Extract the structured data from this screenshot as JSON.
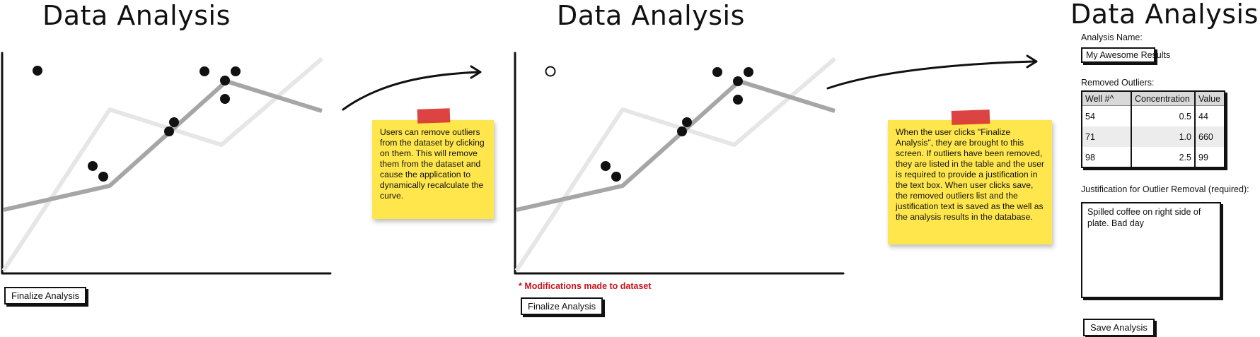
{
  "screens": [
    {
      "title": "Data Analysis",
      "finalize_label": "Finalize Analysis",
      "note": "Users can remove outliers from the dataset by clicking on them. This will remove them from the dataset and cause the application to dynamically recalculate the curve."
    },
    {
      "title": "Data Analysis",
      "modifications_label": "* Modifications made to dataset",
      "finalize_label": "Finalize Analysis",
      "note": "When the user clicks \"Finalize Analysis\", they are brought to this screen. If outliers have been removed, they are listed in the table and the user is required to provide a justification in the text box. When user clicks save, the removed outliers list and the justification text is saved as the well as the analysis results in the database."
    },
    {
      "title": "Data Analysis",
      "analysis_name_label": "Analysis Name:",
      "analysis_name_value": "My Awesome Results",
      "removed_outliers_label": "Removed Outliers:",
      "table_headers": [
        "Well #^",
        "Concentration",
        "Value"
      ],
      "table_rows": [
        [
          "54",
          "0.5",
          "44"
        ],
        [
          "71",
          "1.0",
          "660"
        ],
        [
          "98",
          "2.5",
          "99"
        ]
      ],
      "justification_label": "Justification for Outlier Removal (required):",
      "justification_value": "Spilled coffee on right side of plate. Bad day",
      "save_label": "Save Analysis"
    }
  ],
  "colors": {
    "note_yellow": "#ffe64d",
    "tape_red": "#d93434",
    "modification_red": "#c8141e",
    "curve_gray": "#a6a6a6",
    "reference_gray": "#e6e6e6"
  },
  "chart_data": [
    {
      "type": "scatter",
      "points": [
        [
          -8,
          32
        ],
        [
          7,
          25
        ],
        [
          12,
          20
        ],
        [
          18,
          31
        ],
        [
          22,
          25
        ],
        [
          4,
          28
        ],
        [
          30,
          47
        ],
        [
          35,
          45
        ],
        [
          40,
          47
        ],
        [
          39,
          45
        ],
        [
          45,
          55
        ]
      ],
      "fit_curve": [
        [
          -32,
          5
        ],
        [
          20,
          30
        ],
        [
          53,
          85
        ],
        [
          74,
          70
        ]
      ],
      "reference_curve": [
        [
          -32,
          -20
        ],
        [
          20,
          55
        ],
        [
          40,
          40
        ],
        [
          74,
          75
        ]
      ]
    },
    {
      "type": "scatter",
      "removed_points": [
        [
          -8,
          32
        ]
      ],
      "points": [
        [
          7,
          25
        ],
        [
          12,
          20
        ],
        [
          18,
          31
        ],
        [
          22,
          25
        ],
        [
          4,
          28
        ],
        [
          30,
          47
        ],
        [
          35,
          45
        ],
        [
          40,
          47
        ],
        [
          39,
          45
        ],
        [
          45,
          55
        ]
      ],
      "fit_curve": [
        [
          -32,
          5
        ],
        [
          20,
          30
        ],
        [
          53,
          85
        ],
        [
          74,
          70
        ]
      ],
      "reference_curve": [
        [
          -32,
          -20
        ],
        [
          20,
          55
        ],
        [
          40,
          40
        ],
        [
          74,
          75
        ]
      ]
    }
  ]
}
